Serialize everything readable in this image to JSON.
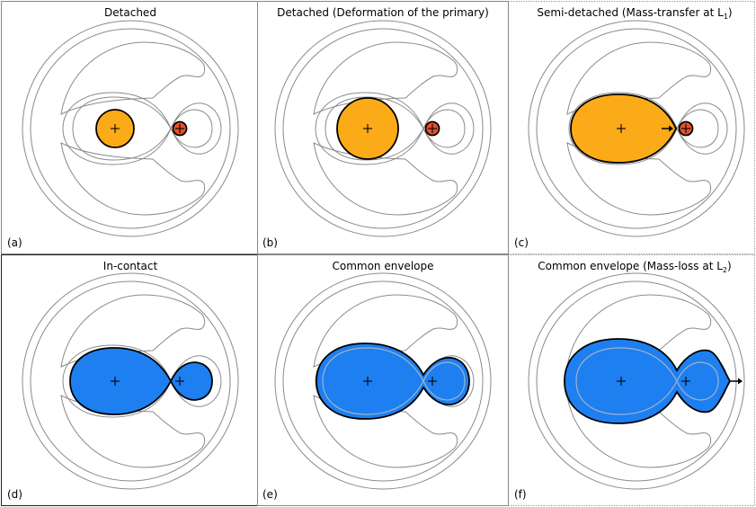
{
  "colors": {
    "primary_star": "#fbab18",
    "secondary_star": "#e8512a",
    "contact_fill": "#1e7ff0",
    "outline": "#000000",
    "contour": "#8a8a8a",
    "inner_lobe": "#9fb3cc"
  },
  "panels": [
    {
      "tag": "(a)",
      "title": "Detached",
      "subscript": ""
    },
    {
      "tag": "(b)",
      "title": "Detached (Deformation of the primary)",
      "subscript": ""
    },
    {
      "tag": "(c)",
      "title": "Semi-detached (Mass-transfer at L",
      "subscript": "1",
      "title_end": ")"
    },
    {
      "tag": "(d)",
      "title": "In-contact",
      "subscript": ""
    },
    {
      "tag": "(e)",
      "title": "Common envelope",
      "subscript": ""
    },
    {
      "tag": "(f)",
      "title": "Common envelope (Mass-loss at L",
      "subscript": "2",
      "title_end": ")"
    }
  ]
}
